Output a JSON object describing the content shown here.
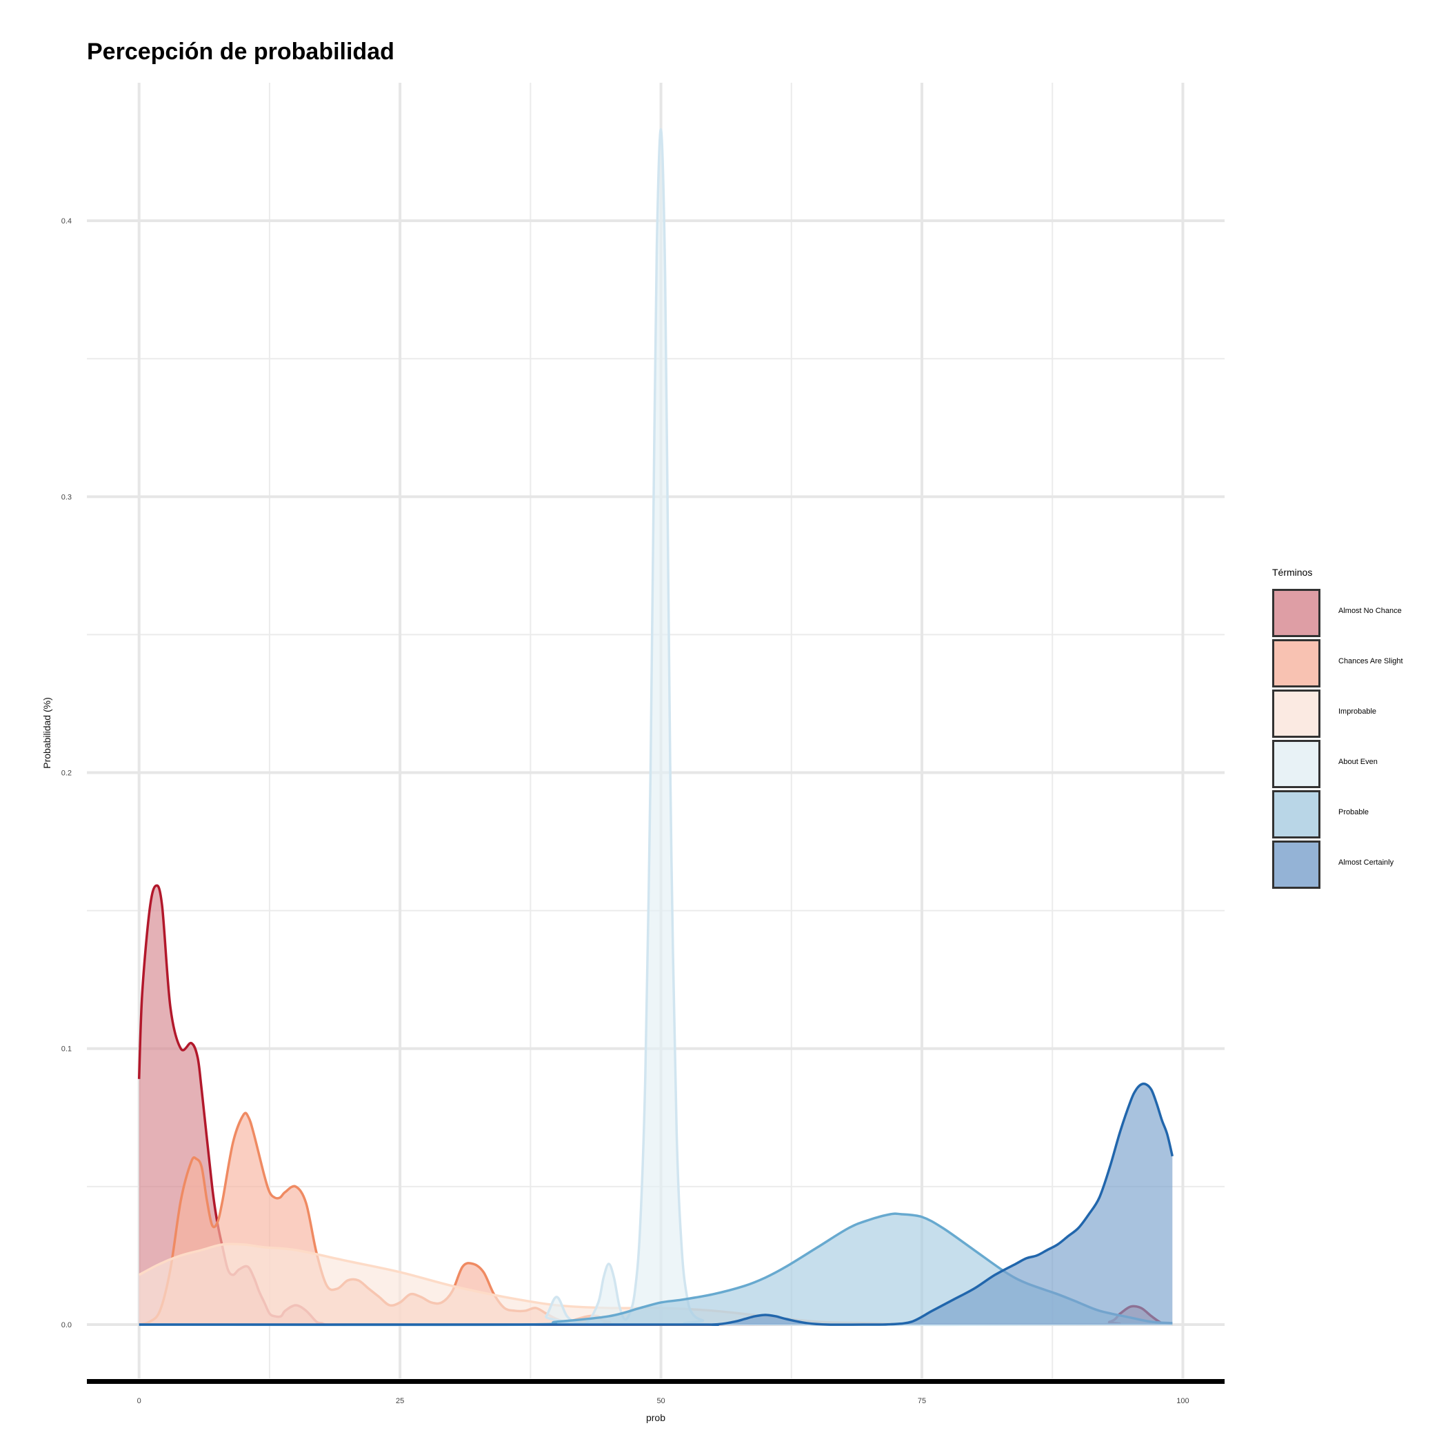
{
  "chart_data": {
    "type": "area",
    "title": "Percepción de probabilidad",
    "xlabel": "prob",
    "ylabel": "Probabilidad (%)",
    "xlim": [
      -5,
      104
    ],
    "ylim": [
      -0.021,
      0.45
    ],
    "x_ticks": [
      0,
      25,
      50,
      75,
      100
    ],
    "x_tick_labels": [
      "0",
      "25",
      "50",
      "75",
      "100"
    ],
    "y_ticks": [
      0.0,
      0.1,
      0.2,
      0.3,
      0.4
    ],
    "y_tick_labels": [
      "0.0",
      "0.1",
      "0.2",
      "0.3",
      "0.4"
    ],
    "grid": true,
    "legend_title": "Términos",
    "legend_position": "right",
    "series": [
      {
        "name": "Almost No Chance",
        "fill": "#d6878f",
        "line": "#b2182b",
        "x": [
          0,
          0.3,
          1,
          1.6,
          2.2,
          3,
          4,
          5,
          5.6,
          6,
          7,
          7.5,
          8,
          8.5,
          9,
          9.6,
          10.4,
          11,
          11.5,
          12,
          12.5,
          13,
          13.6,
          14,
          15,
          16,
          17,
          17.5,
          18,
          20,
          25,
          30,
          50,
          90,
          93,
          94,
          95,
          96,
          97,
          98,
          99
        ],
        "y": [
          0.089,
          0.12,
          0.15,
          0.159,
          0.152,
          0.115,
          0.1,
          0.102,
          0.097,
          0.085,
          0.05,
          0.037,
          0.028,
          0.02,
          0.018,
          0.02,
          0.021,
          0.017,
          0.012,
          0.008,
          0.004,
          0.003,
          0.003,
          0.005,
          0.007,
          0.005,
          0.001,
          0.0005,
          0,
          0,
          0,
          0,
          0,
          0,
          0.001,
          0.004,
          0.0065,
          0.006,
          0.003,
          0.0005,
          0
        ]
      },
      {
        "name": "Chances Are Slight",
        "fill": "#f7b39f",
        "line": "#ef8a62",
        "x": [
          0,
          1,
          2,
          3,
          4,
          5,
          5.5,
          6,
          6.5,
          7,
          7.5,
          8,
          9,
          10,
          10.5,
          11,
          12,
          12.5,
          13,
          13.5,
          14,
          15,
          16,
          17,
          18,
          19,
          20,
          21,
          22,
          23,
          24,
          25,
          26,
          27,
          28,
          29,
          30,
          31,
          32,
          33,
          34,
          35,
          36,
          37,
          38,
          39,
          40,
          41,
          42,
          43,
          44,
          45,
          50,
          99
        ],
        "y": [
          0,
          0.001,
          0.005,
          0.02,
          0.045,
          0.059,
          0.06,
          0.057,
          0.045,
          0.036,
          0.037,
          0.045,
          0.066,
          0.076,
          0.075,
          0.069,
          0.054,
          0.048,
          0.046,
          0.046,
          0.048,
          0.05,
          0.044,
          0.026,
          0.014,
          0.013,
          0.016,
          0.016,
          0.013,
          0.01,
          0.007,
          0.008,
          0.011,
          0.01,
          0.008,
          0.008,
          0.012,
          0.021,
          0.022,
          0.019,
          0.011,
          0.006,
          0.005,
          0.005,
          0.006,
          0.004,
          0.002,
          0.001,
          0.002,
          0.003,
          0.003,
          0.001,
          0,
          0
        ]
      },
      {
        "name": "Improbable",
        "fill": "#fbe6dc",
        "line": "#fddbc7",
        "x": [
          0,
          2,
          4,
          6,
          8,
          10,
          12,
          15,
          20,
          25,
          30,
          35,
          40,
          45,
          50,
          55,
          60,
          65,
          70,
          75,
          80,
          85,
          90,
          95,
          99
        ],
        "y": [
          0.018,
          0.022,
          0.025,
          0.027,
          0.029,
          0.029,
          0.028,
          0.027,
          0.023,
          0.019,
          0.014,
          0.01,
          0.007,
          0.006,
          0.006,
          0.005,
          0.003,
          0.001,
          0.0005,
          0,
          0,
          0,
          0,
          0,
          0
        ]
      },
      {
        "name": "About Even",
        "fill": "#e3eff5",
        "line": "#d1e5f0",
        "x": [
          0,
          38,
          39,
          40,
          41,
          42,
          43,
          44,
          44.5,
          45,
          45.5,
          46,
          46.5,
          47,
          47.5,
          48,
          48.5,
          49,
          49.3,
          49.6,
          50,
          50.4,
          50.7,
          51,
          51.5,
          52,
          52.5,
          53,
          54,
          56,
          99
        ],
        "y": [
          0,
          0,
          0.003,
          0.01,
          0.003,
          0.0005,
          0.001,
          0.008,
          0.017,
          0.022,
          0.017,
          0.007,
          0.002,
          0.004,
          0.012,
          0.035,
          0.09,
          0.2,
          0.3,
          0.39,
          0.433,
          0.38,
          0.27,
          0.17,
          0.07,
          0.027,
          0.01,
          0.004,
          0.0015,
          0,
          0
        ]
      },
      {
        "name": "Probable",
        "fill": "#a8cde2",
        "line": "#67a9cf",
        "x": [
          0,
          36,
          40,
          45,
          48,
          50,
          52,
          55,
          58,
          60,
          62,
          65,
          68,
          70,
          72,
          73,
          75,
          77,
          80,
          83,
          85,
          88,
          90,
          92,
          95,
          97,
          99
        ],
        "y": [
          0,
          0,
          0.001,
          0.003,
          0.006,
          0.008,
          0.009,
          0.011,
          0.014,
          0.017,
          0.021,
          0.028,
          0.035,
          0.038,
          0.04,
          0.04,
          0.039,
          0.035,
          0.027,
          0.019,
          0.015,
          0.011,
          0.008,
          0.005,
          0.0025,
          0.001,
          0.0005
        ]
      },
      {
        "name": "Almost Certainly",
        "fill": "#7aa1cc",
        "line": "#2166ac",
        "x": [
          0,
          50,
          55,
          57,
          58,
          59,
          60,
          61,
          62,
          64,
          66,
          70,
          72,
          74,
          76,
          78,
          80,
          82,
          84,
          85,
          86,
          87,
          88,
          89,
          90,
          91,
          92,
          93,
          94,
          95,
          95.5,
          96,
          96.5,
          97,
          97.5,
          98,
          98.5,
          99
        ],
        "y": [
          0,
          0,
          0,
          0.001,
          0.002,
          0.003,
          0.0035,
          0.003,
          0.002,
          0.0005,
          0,
          0,
          0.0001,
          0.001,
          0.005,
          0.009,
          0.013,
          0.018,
          0.022,
          0.024,
          0.025,
          0.027,
          0.029,
          0.032,
          0.035,
          0.04,
          0.046,
          0.057,
          0.07,
          0.081,
          0.085,
          0.087,
          0.087,
          0.085,
          0.08,
          0.074,
          0.069,
          0.061
        ]
      }
    ]
  }
}
